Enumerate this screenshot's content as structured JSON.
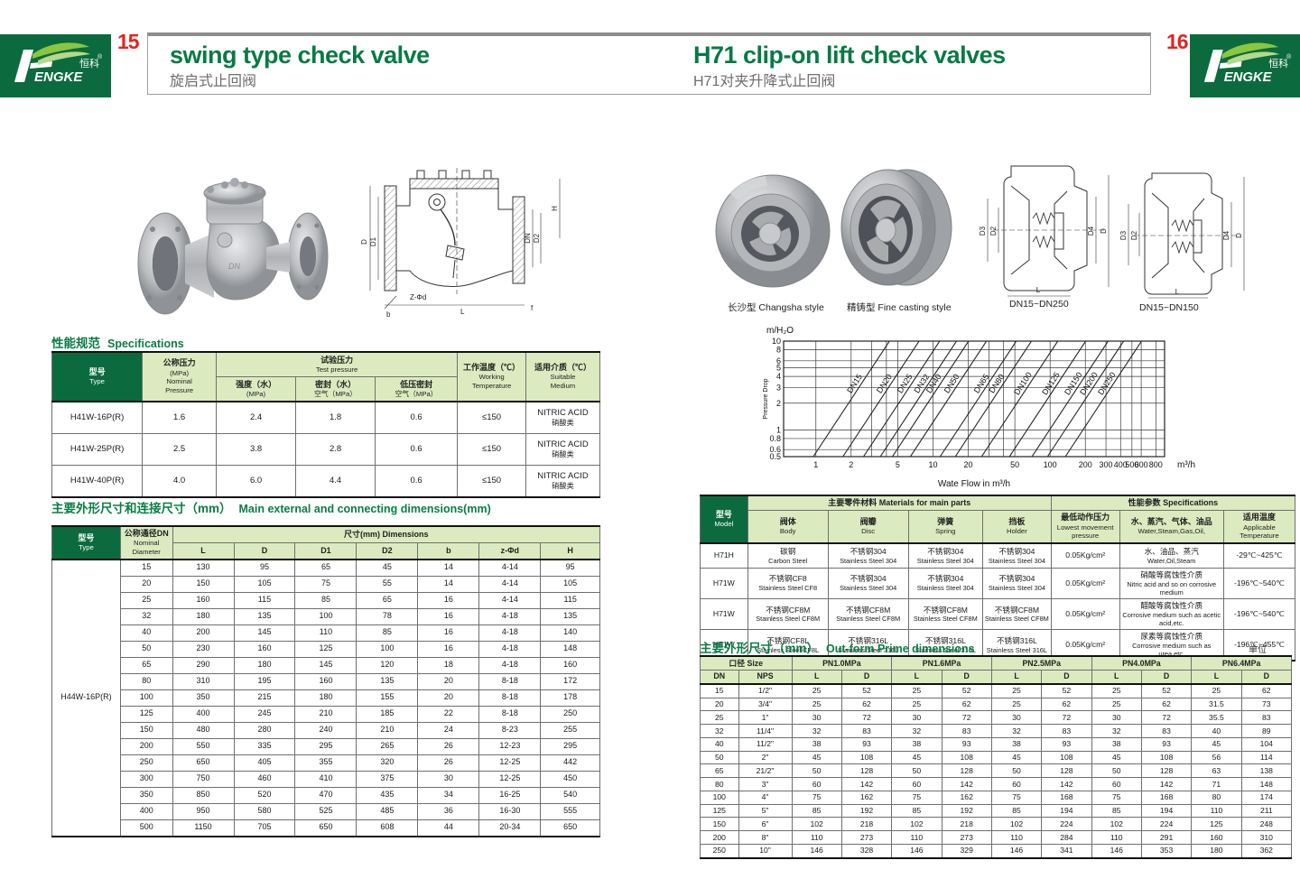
{
  "page": {
    "left_page_number": "15",
    "right_page_number": "16",
    "left_title": {
      "en": "swing type check valve",
      "cn": "旋启式止回阀"
    },
    "right_title": {
      "en": "H71 clip-on lift check valves",
      "cn": "H71对夹升降式止回阀"
    },
    "brand": {
      "word": "ENGKE",
      "h": "H",
      "cn": "恒科",
      "reg": "®"
    }
  },
  "colors": {
    "brand_green": "#0b6b3e",
    "header_light_green": "#dcebbf",
    "title_green": "#077a45",
    "page_number_red": "#e42320"
  },
  "left": {
    "spec_section": {
      "cn": "性能规范",
      "en": "Specifications"
    },
    "spec_table": {
      "widths": [
        16.5,
        13.5,
        14.5,
        14.5,
        15,
        12.5,
        13.5
      ],
      "head": [
        [
          {
            "lines": [
              "型号",
              "Type"
            ],
            "rs": 2,
            "dark": true
          },
          {
            "lines": [
              "公称压力",
              "(MPa)",
              "Nominal",
              "Pressure"
            ],
            "rs": 2
          },
          {
            "lines": [
              "试验压力",
              "Test pressure"
            ],
            "cs": 3
          },
          {
            "lines": [
              "工作温度（℃）",
              "Working",
              "Temperature"
            ],
            "rs": 2
          },
          {
            "lines": [
              "适用介质（℃）",
              "Suitable",
              "Medium"
            ],
            "rs": 2
          }
        ],
        [
          {
            "lines": [
              "强度（水）",
              "(MPa)"
            ]
          },
          {
            "lines": [
              "密封（水）",
              "空气（MPa）"
            ]
          },
          {
            "lines": [
              "低压密封",
              "空气（MPa）"
            ]
          }
        ]
      ],
      "rows": [
        [
          "H41W-16P(R)",
          "1.6",
          "2.4",
          "1.8",
          "0.6",
          "≤150",
          {
            "lines": [
              "NITRIC ACID",
              "硝酸类"
            ]
          }
        ],
        [
          "H41W-25P(R)",
          "2.5",
          "3.8",
          "2.8",
          "0.6",
          "≤150",
          {
            "lines": [
              "NITRIC ACID",
              "硝酸类"
            ]
          }
        ],
        [
          "H41W-40P(R)",
          "4.0",
          "6.0",
          "4.4",
          "0.6",
          "≤150",
          {
            "lines": [
              "NITRIC ACID",
              "硝酸类"
            ]
          }
        ]
      ]
    },
    "dims_section": {
      "cn": "主要外形尺寸和连接尺寸（mm）",
      "en": "Main external and connecting dimensions(mm)"
    },
    "dims_table": {
      "widths": [
        12.5,
        9.5,
        11.2,
        11.2,
        11.2,
        11.2,
        11.2,
        11.2,
        10.8
      ],
      "type_label": "H44W-16P(R)",
      "head": [
        [
          {
            "lines": [
              "型号",
              "Type"
            ],
            "rs": 2,
            "dark": true
          },
          {
            "lines": [
              "公称通径DN",
              "Nominal",
              "Diameter"
            ],
            "rs": 2
          },
          {
            "lines": [
              "尺寸(mm) Dimensions"
            ],
            "cs": 7
          }
        ],
        [
          {
            "lines": [
              "L"
            ]
          },
          {
            "lines": [
              "D"
            ]
          },
          {
            "lines": [
              "D1"
            ]
          },
          {
            "lines": [
              "D2"
            ]
          },
          {
            "lines": [
              "b"
            ]
          },
          {
            "lines": [
              "z-Φd"
            ]
          },
          {
            "lines": [
              "H"
            ]
          }
        ]
      ],
      "rows": [
        [
          "15",
          "130",
          "95",
          "65",
          "45",
          "14",
          "4-14",
          "95"
        ],
        [
          "20",
          "150",
          "105",
          "75",
          "55",
          "14",
          "4-14",
          "105"
        ],
        [
          "25",
          "160",
          "115",
          "85",
          "65",
          "16",
          "4-14",
          "115"
        ],
        [
          "32",
          "180",
          "135",
          "100",
          "78",
          "16",
          "4-18",
          "135"
        ],
        [
          "40",
          "200",
          "145",
          "110",
          "85",
          "16",
          "4-18",
          "140"
        ],
        [
          "50",
          "230",
          "160",
          "125",
          "100",
          "16",
          "4-18",
          "148"
        ],
        [
          "65",
          "290",
          "180",
          "145",
          "120",
          "18",
          "4-18",
          "160"
        ],
        [
          "80",
          "310",
          "195",
          "160",
          "135",
          "20",
          "8-18",
          "172"
        ],
        [
          "100",
          "350",
          "215",
          "180",
          "155",
          "20",
          "8-18",
          "178"
        ],
        [
          "125",
          "400",
          "245",
          "210",
          "185",
          "22",
          "8-18",
          "250"
        ],
        [
          "150",
          "480",
          "280",
          "240",
          "210",
          "24",
          "8-23",
          "255"
        ],
        [
          "200",
          "550",
          "335",
          "295",
          "265",
          "26",
          "12-23",
          "295"
        ],
        [
          "250",
          "650",
          "405",
          "355",
          "320",
          "26",
          "12-25",
          "442"
        ],
        [
          "300",
          "750",
          "460",
          "410",
          "375",
          "30",
          "12-25",
          "450"
        ],
        [
          "350",
          "850",
          "520",
          "470",
          "435",
          "34",
          "16-25",
          "540"
        ],
        [
          "400",
          "950",
          "580",
          "525",
          "485",
          "36",
          "16-30",
          "555"
        ],
        [
          "500",
          "1150",
          "705",
          "650",
          "608",
          "44",
          "20-34",
          "650"
        ]
      ]
    },
    "drawing_labels": {
      "d": "D",
      "d1": "D1",
      "dn": "DN",
      "d2": "D2",
      "h": "H",
      "zd": "Z-Φd",
      "b": "b",
      "l": "L",
      "f": "f"
    }
  },
  "right": {
    "captions": [
      "长沙型 Changsha style",
      "精铸型 Fine casting style",
      "DN15~DN250",
      "DN15~DN150"
    ],
    "drawing_labels": {
      "d3": "D3",
      "d2": "D2",
      "d4": "D4",
      "d": "D",
      "l": "L"
    },
    "materials_table": {
      "widths": [
        8,
        13.5,
        13.5,
        12.5,
        11.5,
        11.5,
        17.5,
        12
      ],
      "head": [
        [
          {
            "lines": [
              "型号",
              "Model"
            ],
            "rs": 2,
            "dark": true
          },
          {
            "lines": [
              "主要零件材料 Materials for main parts"
            ],
            "cs": 4
          },
          {
            "lines": [
              "性能参数 Specifications"
            ],
            "cs": 3
          }
        ],
        [
          {
            "lines": [
              "阀体",
              "Body"
            ]
          },
          {
            "lines": [
              "阀瓣",
              "Disc"
            ]
          },
          {
            "lines": [
              "弹簧",
              "Spring"
            ]
          },
          {
            "lines": [
              "挡板",
              "Holder"
            ]
          },
          {
            "lines": [
              "最低动作压力",
              "Lowest movement",
              "pressure"
            ]
          },
          {
            "lines": [
              "水、蒸汽、气体、油品",
              "Water,Steam,Gas,Oil,"
            ]
          },
          {
            "lines": [
              "适用温度",
              "Applicable",
              "Temperature"
            ]
          }
        ]
      ],
      "rows": [
        [
          "H71H",
          {
            "lines": [
              "碳钢",
              "Carbon Steel"
            ]
          },
          {
            "lines": [
              "不锈钢304",
              "Stainless Steel 304"
            ]
          },
          {
            "lines": [
              "不锈钢304",
              "Stainless Steel 304"
            ]
          },
          {
            "lines": [
              "不锈钢304",
              "Stainless Steel 304"
            ]
          },
          "0.05Kg/cm²",
          {
            "lines": [
              "水、油品、蒸汽",
              "Water,Oil,Steam"
            ]
          },
          "-29℃~425℃"
        ],
        [
          "H71W",
          {
            "lines": [
              "不锈钢CF8",
              "Stainless Steel CF8"
            ]
          },
          {
            "lines": [
              "不锈钢304",
              "Stainless Steel 304"
            ]
          },
          {
            "lines": [
              "不锈钢304",
              "Stainless Steel 304"
            ]
          },
          {
            "lines": [
              "不锈钢304",
              "Stainless Steel 304"
            ]
          },
          "0.05Kg/cm²",
          {
            "lines": [
              "硝酸等腐蚀性介质",
              "Nitric acid and so on corrosive medium"
            ]
          },
          "-196℃~540℃"
        ],
        [
          "H71W",
          {
            "lines": [
              "不锈钢CF8M",
              "Stainless Steel CF8M"
            ]
          },
          {
            "lines": [
              "不锈钢CF8M",
              "Stainless Steel CF8M"
            ]
          },
          {
            "lines": [
              "不锈钢CF8M",
              "Stainless Steel CF8M"
            ]
          },
          {
            "lines": [
              "不锈钢CF8M",
              "Stainless Steel CF8M"
            ]
          },
          "0.05Kg/cm²",
          {
            "lines": [
              "醋酸等腐蚀性介质",
              "Corrosive medium such as acetic acid,etc."
            ]
          },
          "-196℃~540℃"
        ],
        [
          "H71W",
          {
            "lines": [
              "不锈钢CF8L",
              "Stainless Steel CF8L"
            ]
          },
          {
            "lines": [
              "不锈钢316L",
              "Stainless Steel 316L"
            ]
          },
          {
            "lines": [
              "不锈钢316L",
              "Stainless Steel 316L"
            ]
          },
          {
            "lines": [
              "不锈钢316L",
              "Stainless Steel 316L"
            ]
          },
          "0.05Kg/cm²",
          {
            "lines": [
              "尿素等腐蚀性介质",
              "Corrosive medium such as urea,etc."
            ]
          },
          "-196℃~455℃"
        ]
      ]
    },
    "outform_section": {
      "cn": "主要外形尺寸（mm）",
      "en": "Out-form Prime dimensions",
      "unit": "单位Unit:mm"
    },
    "outform_table": {
      "widths": [
        6.5,
        9,
        8.45,
        8.45,
        8.45,
        8.45,
        8.45,
        8.45,
        8.45,
        8.45,
        8.45,
        8.45
      ],
      "head": [
        [
          {
            "lines": [
              "口径 Size"
            ],
            "cs": 2
          },
          {
            "lines": [
              "PN1.0MPa"
            ],
            "cs": 2
          },
          {
            "lines": [
              "PN1.6MPa"
            ],
            "cs": 2
          },
          {
            "lines": [
              "PN2.5MPa"
            ],
            "cs": 2
          },
          {
            "lines": [
              "PN4.0MPa"
            ],
            "cs": 2
          },
          {
            "lines": [
              "PN6.4MPa"
            ],
            "cs": 2
          }
        ],
        [
          {
            "lines": [
              "DN"
            ]
          },
          {
            "lines": [
              "NPS"
            ]
          },
          {
            "lines": [
              "L"
            ]
          },
          {
            "lines": [
              "D"
            ]
          },
          {
            "lines": [
              "L"
            ]
          },
          {
            "lines": [
              "D"
            ]
          },
          {
            "lines": [
              "L"
            ]
          },
          {
            "lines": [
              "D"
            ]
          },
          {
            "lines": [
              "L"
            ]
          },
          {
            "lines": [
              "D"
            ]
          },
          {
            "lines": [
              "L"
            ]
          },
          {
            "lines": [
              "D"
            ]
          }
        ]
      ],
      "rows": [
        [
          "15",
          "1/2\"",
          "25",
          "52",
          "25",
          "52",
          "25",
          "52",
          "25",
          "52",
          "25",
          "62"
        ],
        [
          "20",
          "3/4\"",
          "25",
          "62",
          "25",
          "62",
          "25",
          "62",
          "25",
          "62",
          "31.5",
          "73"
        ],
        [
          "25",
          "1\"",
          "30",
          "72",
          "30",
          "72",
          "30",
          "72",
          "30",
          "72",
          "35.5",
          "83"
        ],
        [
          "32",
          "11/4\"",
          "32",
          "83",
          "32",
          "83",
          "32",
          "83",
          "32",
          "83",
          "40",
          "89"
        ],
        [
          "40",
          "11/2\"",
          "38",
          "93",
          "38",
          "93",
          "38",
          "93",
          "38",
          "93",
          "45",
          "104"
        ],
        [
          "50",
          "2\"",
          "45",
          "108",
          "45",
          "108",
          "45",
          "108",
          "45",
          "108",
          "56",
          "114"
        ],
        [
          "65",
          "21/2\"",
          "50",
          "128",
          "50",
          "128",
          "50",
          "128",
          "50",
          "128",
          "63",
          "138"
        ],
        [
          "80",
          "3\"",
          "60",
          "142",
          "60",
          "142",
          "60",
          "142",
          "60",
          "142",
          "71",
          "148"
        ],
        [
          "100",
          "4\"",
          "75",
          "162",
          "75",
          "162",
          "75",
          "168",
          "75",
          "168",
          "80",
          "174"
        ],
        [
          "125",
          "5\"",
          "85",
          "192",
          "85",
          "192",
          "85",
          "194",
          "85",
          "194",
          "110",
          "211"
        ],
        [
          "150",
          "6\"",
          "102",
          "218",
          "102",
          "218",
          "102",
          "224",
          "102",
          "224",
          "125",
          "248"
        ],
        [
          "200",
          "8\"",
          "110",
          "273",
          "110",
          "273",
          "110",
          "284",
          "110",
          "291",
          "160",
          "310"
        ],
        [
          "250",
          "10\"",
          "146",
          "328",
          "146",
          "329",
          "146",
          "341",
          "146",
          "353",
          "180",
          "362"
        ]
      ]
    }
  },
  "chart_data": {
    "type": "line",
    "title": "",
    "ylabel_unit": "m/H₂O",
    "ylabel": "Pressure Drop",
    "xlabel": "Wate Flow in m³/h",
    "x_unit": "m³/h",
    "xscale": "log",
    "yscale": "log",
    "xlim": [
      0.53,
      950
    ],
    "ylim": [
      0.5,
      10
    ],
    "x_ticks": [
      1,
      2,
      5,
      10,
      20,
      50,
      100,
      200,
      300,
      400,
      500,
      600,
      800
    ],
    "y_ticks": [
      10,
      8,
      6,
      5,
      4,
      3,
      2,
      1,
      0.8,
      0.6,
      0.5
    ],
    "x_grid": [
      1,
      2,
      3,
      4,
      5,
      10,
      20,
      30,
      40,
      50,
      100,
      200,
      300,
      400,
      500,
      600,
      800
    ],
    "y_grid": [
      0.5,
      0.6,
      0.8,
      1,
      2,
      3,
      4,
      5,
      6,
      8,
      10
    ],
    "slope_loglog": 2,
    "series": [
      {
        "name": "DN15",
        "x_at_ymin": 0.95
      },
      {
        "name": "DN20",
        "x_at_ymin": 1.7
      },
      {
        "name": "DN25",
        "x_at_ymin": 2.55
      },
      {
        "name": "DN32",
        "x_at_ymin": 3.55
      },
      {
        "name": "DN40",
        "x_at_ymin": 4.5
      },
      {
        "name": "DN50",
        "x_at_ymin": 6.4
      },
      {
        "name": "DN65",
        "x_at_ymin": 11.5
      },
      {
        "name": "DN80",
        "x_at_ymin": 15.5
      },
      {
        "name": "DN100",
        "x_at_ymin": 26
      },
      {
        "name": "DN125",
        "x_at_ymin": 45
      },
      {
        "name": "DN150",
        "x_at_ymin": 70
      },
      {
        "name": "DN200",
        "x_at_ymin": 95
      },
      {
        "name": "DN250",
        "x_at_ymin": 135
      }
    ]
  }
}
